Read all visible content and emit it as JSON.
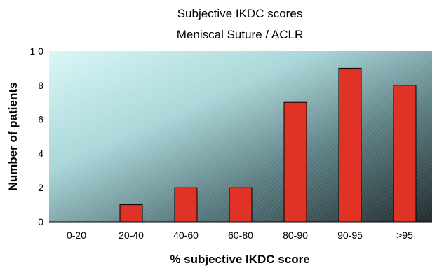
{
  "chart_data": {
    "type": "bar",
    "title": "Subjective IKDC scores",
    "subtitle": "Meniscal Suture / ACLR",
    "xlabel": "% subjective IKDC score",
    "ylabel": "Number of patients",
    "categories": [
      "0-20",
      "20-40",
      "40-60",
      "60-80",
      "80-90",
      "90-95",
      ">95"
    ],
    "values": [
      0,
      1,
      2,
      2,
      7,
      9,
      8
    ],
    "ylim": [
      0,
      10
    ],
    "yticks": [
      0,
      2,
      4,
      6,
      8,
      10
    ],
    "ytick_labels": [
      "0",
      "2",
      "4",
      "6",
      "8",
      "1 0"
    ],
    "grid": false,
    "legend": "none",
    "colors": {
      "bar": "#e03326",
      "plot_bg_light": "#d8f7f7",
      "plot_bg_dark": "#2a3a3e"
    }
  }
}
